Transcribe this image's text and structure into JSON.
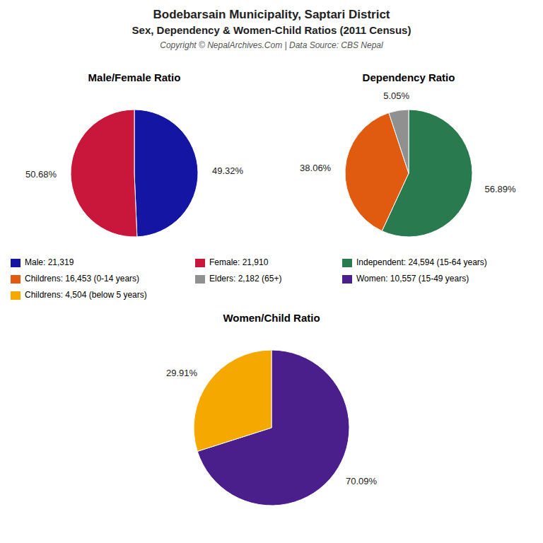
{
  "title": "Bodebarsain Municipality, Saptari District",
  "subtitle": "Sex, Dependency & Women-Child Ratios (2011 Census)",
  "annotations": [
    "Copyright © NepalArchives.Com | Data Source: CBS Nepal"
  ],
  "chart_data": [
    {
      "type": "pie",
      "title": "Male/Female Ratio",
      "categories": [
        "Male: 21,319",
        "Female: 21,910"
      ],
      "values": [
        49.32,
        50.68
      ],
      "value_labels": [
        "49.32%",
        "50.68%"
      ],
      "colors": [
        "#1515a3",
        "#c8173a"
      ],
      "data_labels": true
    },
    {
      "type": "pie",
      "title": "Dependency Ratio",
      "categories": [
        "Independent: 24,594 (15-64 years)",
        "Childrens: 16,453 (0-14 years)",
        "Elders: 2,182 (65+)"
      ],
      "values": [
        56.89,
        38.06,
        5.05
      ],
      "value_labels": [
        "56.89%",
        "38.06%",
        "5.05%"
      ],
      "colors": [
        "#2a7a50",
        "#e05a10",
        "#909090"
      ],
      "data_labels": true
    },
    {
      "type": "pie",
      "title": "Women/Child Ratio",
      "categories": [
        "Women: 10,557 (15-49 years)",
        "Childrens: 4,504 (below 5 years)"
      ],
      "values": [
        70.09,
        29.91
      ],
      "value_labels": [
        "70.09%",
        "29.91%"
      ],
      "colors": [
        "#4a1f8c",
        "#f5a800"
      ],
      "data_labels": true
    }
  ]
}
